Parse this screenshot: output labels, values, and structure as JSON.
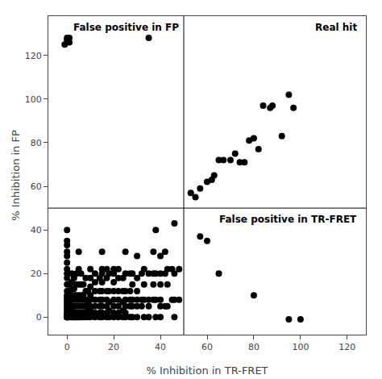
{
  "chart_data": {
    "type": "scatter",
    "xlabel": "% Inhibition in TR-FRET",
    "ylabel": "% Inhibition in FP",
    "xlim": [
      -8,
      128
    ],
    "ylim": [
      -8,
      138
    ],
    "xticks": [
      0,
      20,
      40,
      60,
      80,
      100,
      120
    ],
    "yticks": [
      0,
      20,
      40,
      60,
      80,
      100,
      120
    ],
    "grid": false,
    "color": "#000000",
    "marker": "circle",
    "thresholds": {
      "x": 50,
      "y": 50
    },
    "threshold_color": "#000000",
    "annotations": [
      {
        "text": "False positive in FP",
        "x": 2,
        "y": 136
      },
      {
        "text": "Real hit",
        "x": 125,
        "y": 136
      },
      {
        "text": "False positive in TR-FRET",
        "x": 125,
        "y": 48
      }
    ],
    "x": [
      0,
      0,
      0,
      0,
      0,
      0,
      0,
      0,
      0,
      0,
      0,
      0,
      0,
      0,
      0,
      0,
      0,
      0,
      0,
      0,
      0,
      0,
      0,
      0,
      0,
      0,
      0,
      1,
      1,
      1,
      1,
      1,
      1,
      1,
      1,
      1,
      1,
      2,
      2,
      2,
      2,
      2,
      2,
      2,
      2,
      2,
      2,
      2,
      3,
      3,
      3,
      3,
      3,
      3,
      3,
      3,
      3,
      4,
      4,
      4,
      4,
      4,
      4,
      4,
      4,
      4,
      5,
      5,
      5,
      5,
      5,
      5,
      5,
      5,
      5,
      5,
      6,
      6,
      6,
      6,
      6,
      6,
      6,
      6,
      7,
      7,
      7,
      7,
      7,
      7,
      7,
      8,
      8,
      8,
      8,
      8,
      8,
      8,
      9,
      9,
      9,
      9,
      9,
      10,
      10,
      10,
      10,
      10,
      10,
      10,
      10,
      10,
      12,
      12,
      12,
      12,
      12,
      12,
      12,
      14,
      14,
      14,
      14,
      14,
      14,
      15,
      15,
      15,
      15,
      15,
      15,
      15,
      15,
      15,
      17,
      17,
      17,
      17,
      17,
      17,
      17,
      18,
      18,
      18,
      18,
      18,
      20,
      20,
      20,
      20,
      20,
      20,
      20,
      20,
      22,
      22,
      22,
      22,
      22,
      22,
      22,
      24,
      24,
      24,
      24,
      24,
      25,
      25,
      25,
      25,
      25,
      25,
      25,
      27,
      27,
      27,
      27,
      27,
      28,
      28,
      28,
      28,
      28,
      30,
      30,
      30,
      30,
      30,
      30,
      32,
      32,
      32,
      33,
      33,
      33,
      33,
      35,
      35,
      35,
      35,
      37,
      37,
      37,
      37,
      38,
      38,
      38,
      38,
      40,
      40,
      40,
      40,
      40,
      40,
      42,
      42,
      42,
      43,
      43,
      43,
      45,
      45,
      46,
      46,
      46,
      46,
      48,
      48,
      -1,
      0,
      0,
      1,
      1,
      35,
      53,
      55,
      57,
      60,
      62,
      63,
      65,
      67,
      70,
      72,
      74,
      76,
      78,
      80,
      82,
      84,
      87,
      88,
      92,
      95,
      97,
      57,
      60,
      65,
      80,
      95,
      100
    ],
    "values": [
      0,
      0,
      0,
      0,
      0,
      1,
      1,
      2,
      3,
      4,
      5,
      6,
      7,
      8,
      9,
      10,
      12,
      15,
      18,
      20,
      22,
      25,
      28,
      30,
      33,
      35,
      40,
      0,
      0,
      1,
      2,
      3,
      5,
      7,
      9,
      12,
      15,
      0,
      0,
      1,
      2,
      3,
      5,
      8,
      10,
      13,
      16,
      20,
      0,
      0,
      1,
      2,
      5,
      8,
      10,
      13,
      18,
      0,
      0,
      1,
      2,
      5,
      8,
      10,
      15,
      20,
      0,
      0,
      1,
      2,
      5,
      8,
      10,
      15,
      22,
      30,
      0,
      1,
      2,
      5,
      8,
      10,
      15,
      20,
      0,
      1,
      2,
      5,
      8,
      10,
      15,
      0,
      1,
      2,
      5,
      8,
      12,
      18,
      0,
      1,
      3,
      7,
      12,
      0,
      1,
      3,
      5,
      8,
      10,
      14,
      18,
      22,
      0,
      2,
      5,
      8,
      12,
      16,
      20,
      0,
      2,
      5,
      8,
      12,
      18,
      0,
      2,
      5,
      8,
      12,
      16,
      20,
      22,
      30,
      0,
      2,
      5,
      8,
      12,
      18,
      22,
      0,
      3,
      7,
      12,
      20,
      0,
      2,
      5,
      8,
      12,
      16,
      20,
      22,
      0,
      2,
      5,
      8,
      12,
      18,
      22,
      0,
      3,
      7,
      12,
      18,
      0,
      2,
      5,
      8,
      12,
      20,
      30,
      0,
      5,
      8,
      12,
      20,
      0,
      5,
      8,
      15,
      20,
      0,
      5,
      8,
      12,
      18,
      28,
      5,
      8,
      20,
      0,
      8,
      15,
      22,
      0,
      5,
      8,
      20,
      8,
      15,
      20,
      30,
      0,
      8,
      20,
      40,
      0,
      5,
      8,
      15,
      20,
      28,
      5,
      20,
      30,
      5,
      15,
      22,
      8,
      22,
      0,
      8,
      20,
      43,
      8,
      22,
      125,
      127,
      128,
      128,
      126,
      128,
      57,
      55,
      59,
      62,
      63,
      65,
      72,
      72,
      72,
      75,
      71,
      71,
      81,
      82,
      77,
      97,
      96,
      97,
      83,
      102,
      96,
      37,
      35,
      20,
      10,
      -1,
      -1
    ]
  }
}
